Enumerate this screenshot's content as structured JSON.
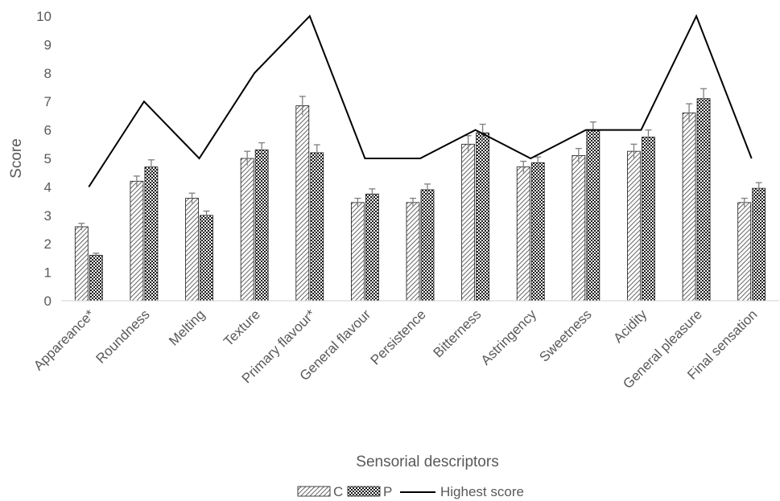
{
  "chart_data": {
    "type": "bar",
    "xlabel": "Sensorial descriptors",
    "ylabel": "Score",
    "ylim": [
      0,
      10
    ],
    "yticks": [
      0,
      1,
      2,
      3,
      4,
      5,
      6,
      7,
      8,
      9,
      10
    ],
    "grid": false,
    "legend_position": "bottom",
    "categories": [
      "Appareance*",
      "Roundness",
      "Melting",
      "Texture",
      "Primary flavour*",
      "General flavour",
      "Persistence",
      "Bitterness",
      "Astringency",
      "Sweetness",
      "Acidity",
      "General pleasure",
      "Final sensation"
    ],
    "series": [
      {
        "name": "C",
        "kind": "bar",
        "pattern": "diagonal-hatch",
        "values": [
          2.6,
          4.2,
          3.6,
          5.0,
          6.85,
          3.45,
          3.45,
          5.5,
          4.7,
          5.1,
          5.25,
          6.6,
          3.45
        ],
        "errors": [
          0.12,
          0.18,
          0.18,
          0.25,
          0.33,
          0.15,
          0.15,
          0.3,
          0.2,
          0.25,
          0.25,
          0.32,
          0.15
        ]
      },
      {
        "name": "P",
        "kind": "bar",
        "pattern": "checkered",
        "values": [
          1.6,
          4.7,
          3.0,
          5.3,
          5.2,
          3.75,
          3.9,
          5.9,
          4.85,
          6.0,
          5.75,
          7.1,
          3.95
        ],
        "errors": [
          0.07,
          0.25,
          0.15,
          0.25,
          0.28,
          0.18,
          0.2,
          0.3,
          0.2,
          0.28,
          0.25,
          0.35,
          0.2
        ]
      },
      {
        "name": "Highest score",
        "kind": "line",
        "color": "#000000",
        "values": [
          4,
          7,
          5,
          8,
          10,
          5,
          5,
          6,
          5,
          6,
          6,
          10,
          5
        ]
      }
    ]
  }
}
